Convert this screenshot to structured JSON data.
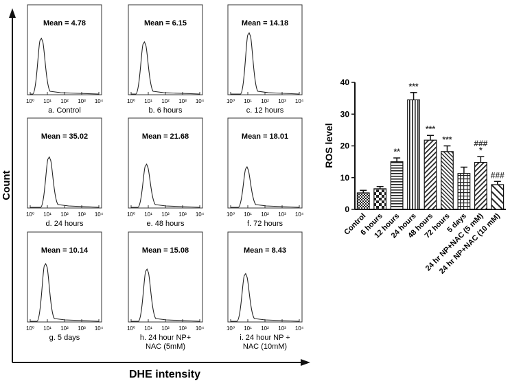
{
  "figure": {
    "y_axis_label": "Count",
    "x_axis_label": "DHE intensity"
  },
  "chart_data": [
    {
      "type": "histogram",
      "panels": [
        {
          "label": "a. Control",
          "mean": "Mean = 4.78",
          "peak_x": 4.5,
          "peak_height": 0.62
        },
        {
          "label": "b. 6 hours",
          "mean": "Mean = 6.15",
          "peak_x": 6.0,
          "peak_height": 0.58
        },
        {
          "label": "c. 12 hours",
          "mean": "Mean = 14.18",
          "peak_x": 12.0,
          "peak_height": 0.68
        },
        {
          "label": "d. 24 hours",
          "mean": "Mean = 35.02",
          "peak_x": 13.0,
          "peak_height": 0.56
        },
        {
          "label": "e. 48 hours",
          "mean": "Mean = 21.68",
          "peak_x": 8.0,
          "peak_height": 0.48
        },
        {
          "label": "f. 72 hours",
          "mean": "Mean = 18.01",
          "peak_x": 9.0,
          "peak_height": 0.45
        },
        {
          "label": "g. 5 days",
          "mean": "Mean = 10.14",
          "peak_x": 8.0,
          "peak_height": 0.64
        },
        {
          "label": "h. 24 hour NP+\nNAC (5mM)",
          "mean": "Mean = 15.08",
          "peak_x": 8.5,
          "peak_height": 0.58
        },
        {
          "label": "i. 24 hour NP +\nNAC (10mM)",
          "mean": "Mean = 8.43",
          "peak_x": 7.5,
          "peak_height": 0.53
        }
      ],
      "x_ticks": [
        "10⁰",
        "10¹",
        "10²",
        "10³",
        "10⁴"
      ],
      "x_scale": "log",
      "xlabel": "DHE intensity",
      "ylabel": "Count"
    },
    {
      "type": "bar",
      "ylabel": "ROS level",
      "ylim": [
        0,
        40
      ],
      "yticks": [
        "0",
        "10",
        "20",
        "30",
        "40"
      ],
      "categories": [
        "Control",
        "6 hours",
        "12 hours",
        "24 hours",
        "48 hours",
        "72 hours",
        "5 days",
        "24 hr NP+NAC (5 mM)",
        "24 hr NP+NAC (10 mM)"
      ],
      "values": [
        5.2,
        6.5,
        15.0,
        34.5,
        21.8,
        18.2,
        11.3,
        14.8,
        7.8
      ],
      "errors": [
        0.8,
        0.7,
        1.2,
        2.3,
        1.5,
        1.8,
        2.0,
        1.8,
        1.0
      ],
      "patterns": [
        "dense-check",
        "check",
        "horizontal",
        "vertical",
        "diagonal",
        "diagonal-fine",
        "grid",
        "diagonal",
        "diagonal-wide"
      ],
      "annotations": [
        {
          "index": 2,
          "lines": [
            "**"
          ]
        },
        {
          "index": 3,
          "lines": [
            "***"
          ]
        },
        {
          "index": 4,
          "lines": [
            "***"
          ]
        },
        {
          "index": 5,
          "lines": [
            "***"
          ]
        },
        {
          "index": 7,
          "lines": [
            "###",
            "*"
          ]
        },
        {
          "index": 8,
          "lines": [
            "###"
          ]
        }
      ],
      "grid": false
    }
  ]
}
